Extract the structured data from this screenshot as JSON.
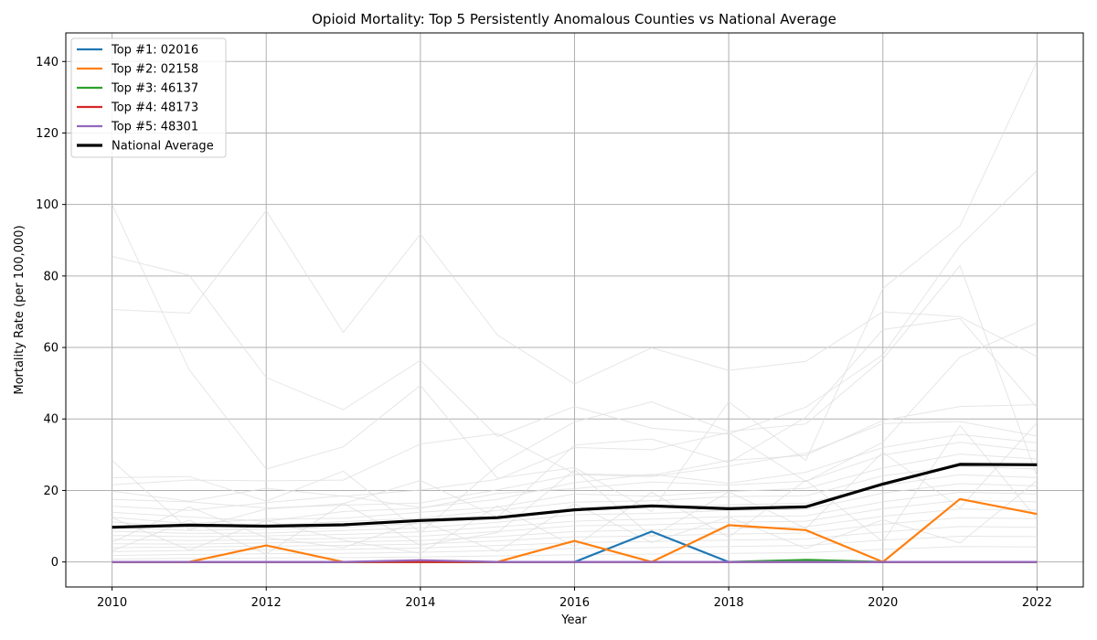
{
  "chart_data": {
    "type": "line",
    "title": "Opioid Mortality: Top 5 Persistently Anomalous Counties vs National Average",
    "xlabel": "Year",
    "ylabel": "Mortality Rate (per 100,000)",
    "xlim": [
      2009.4,
      2022.6
    ],
    "ylim": [
      -7,
      148
    ],
    "x_ticks": [
      2010,
      2012,
      2014,
      2016,
      2018,
      2020,
      2022
    ],
    "y_ticks": [
      0,
      20,
      40,
      60,
      80,
      100,
      120,
      140
    ],
    "grid": true,
    "legend_position": "upper-left",
    "x": [
      2010,
      2011,
      2012,
      2013,
      2014,
      2015,
      2016,
      2017,
      2018,
      2019,
      2020,
      2021,
      2022
    ],
    "series": [
      {
        "name": "Top #1: 02016",
        "color": "#1f77b4",
        "values": [
          0,
          0,
          0,
          0,
          0,
          0,
          0,
          8.5,
          0,
          0,
          0,
          0,
          0
        ]
      },
      {
        "name": "Top #2: 02158",
        "color": "#ff7f0e",
        "values": [
          0,
          0,
          4.6,
          0,
          0,
          0,
          5.9,
          0,
          10.3,
          8.9,
          0,
          17.6,
          13.4
        ]
      },
      {
        "name": "Top #3: 46137",
        "color": "#2ca02c",
        "values": [
          0,
          0,
          0,
          0,
          0,
          0,
          0,
          0,
          0,
          0.6,
          0,
          0,
          0
        ]
      },
      {
        "name": "Top #4: 48173",
        "color": "#d62728",
        "values": [
          0,
          0,
          0,
          0,
          0,
          0,
          0,
          0,
          0,
          0,
          0,
          0,
          0
        ]
      },
      {
        "name": "Top #5: 48301",
        "color": "#9467bd",
        "values": [
          0,
          0,
          0,
          0,
          0.5,
          0,
          0,
          0,
          0,
          0,
          0,
          0,
          0
        ]
      },
      {
        "name": "National Average",
        "color": "#000000",
        "values": [
          9.7,
          10.3,
          10.0,
          10.4,
          11.6,
          12.4,
          14.6,
          15.7,
          14.9,
          15.4,
          21.8,
          27.3,
          27.2
        ]
      }
    ],
    "background_series_color": "#dddddd",
    "background_series": [
      [
        100.0,
        53.8,
        26.0,
        32.2,
        49.4,
        23.4,
        26.4,
        14.1,
        44.8,
        28.4,
        76.5,
        94.0,
        140.0
      ],
      [
        85.5,
        80.2,
        51.6,
        42.6,
        56.4,
        35.1,
        43.5,
        37.4,
        35.8,
        43.3,
        58.0,
        88.4,
        109.5
      ],
      [
        70.6,
        69.6,
        98.3,
        64.2,
        91.7,
        63.5,
        49.8,
        59.9,
        53.6,
        56.1,
        70.0,
        68.6,
        57.4
      ],
      [
        28.4,
        9.0,
        14.8,
        16.3,
        22.8,
        12.5,
        32.7,
        34.4,
        27.8,
        40.5,
        65.0,
        68.1,
        43.2
      ],
      [
        23.6,
        23.9,
        17.0,
        25.4,
        8.2,
        27.0,
        39.2,
        44.8,
        36.5,
        38.6,
        56.8,
        82.9,
        24.1
      ],
      [
        21.6,
        22.9,
        22.7,
        22.9,
        33.0,
        35.9,
        24.7,
        24.2,
        28.4,
        29.8,
        39.6,
        43.5,
        44.0
      ],
      [
        19.8,
        17.0,
        20.6,
        18.4,
        20.1,
        23.1,
        32.0,
        31.4,
        36.2,
        22.5,
        33.5,
        57.3,
        66.9
      ],
      [
        17.5,
        16.8,
        15.1,
        15.9,
        16.5,
        20.2,
        24.4,
        23.9,
        26.8,
        30.4,
        38.7,
        39.3,
        35.2
      ],
      [
        15.6,
        14.4,
        16.6,
        18.5,
        15.2,
        17.5,
        22.2,
        24.5,
        22.0,
        25.1,
        32.0,
        35.7,
        33.3
      ],
      [
        13.9,
        12.6,
        11.4,
        14.1,
        15.0,
        19.2,
        20.5,
        22.4,
        21.5,
        22.6,
        29.9,
        33.5,
        31.0
      ],
      [
        12.5,
        10.7,
        12.0,
        12.2,
        13.9,
        15.3,
        19.0,
        18.4,
        19.7,
        20.6,
        26.3,
        30.2,
        28.8
      ],
      [
        11.2,
        9.6,
        10.3,
        11.3,
        12.2,
        14.4,
        16.7,
        17.1,
        18.3,
        18.5,
        24.1,
        26.8,
        26.0
      ],
      [
        9.8,
        8.8,
        9.2,
        9.7,
        10.8,
        12.6,
        14.7,
        15.2,
        16.0,
        16.4,
        21.4,
        24.4,
        23.6
      ],
      [
        8.6,
        8.0,
        8.1,
        8.8,
        9.5,
        11.1,
        13.2,
        13.6,
        14.4,
        14.7,
        19.3,
        21.9,
        21.3
      ],
      [
        7.4,
        7.1,
        7.3,
        7.7,
        8.4,
        9.8,
        11.4,
        12.0,
        12.7,
        12.9,
        16.8,
        19.5,
        19.0
      ],
      [
        6.3,
        6.0,
        6.2,
        6.6,
        7.2,
        8.5,
        10.1,
        10.4,
        11.1,
        11.4,
        14.9,
        17.2,
        16.8
      ],
      [
        5.1,
        5.0,
        5.3,
        5.6,
        6.0,
        7.1,
        8.5,
        8.9,
        9.4,
        9.8,
        12.8,
        14.8,
        14.5
      ],
      [
        4.0,
        4.2,
        4.4,
        4.6,
        5.0,
        5.9,
        7.0,
        7.3,
        7.8,
        8.1,
        10.6,
        12.4,
        12.1
      ],
      [
        2.9,
        3.2,
        3.4,
        3.5,
        3.9,
        4.6,
        5.4,
        5.7,
        6.1,
        6.4,
        8.4,
        9.9,
        9.7
      ],
      [
        1.8,
        2.1,
        2.3,
        2.4,
        2.7,
        3.2,
        3.8,
        4.0,
        4.3,
        4.6,
        6.1,
        7.2,
        7.1
      ],
      [
        0.8,
        1.0,
        1.1,
        1.2,
        1.4,
        1.7,
        2.0,
        2.2,
        2.4,
        2.6,
        3.5,
        4.3,
        4.2
      ],
      [
        5.5,
        15.4,
        6.8,
        4.0,
        11.5,
        2.9,
        16.3,
        5.4,
        12.6,
        3.8,
        11.8,
        5.3,
        22.8
      ],
      [
        12.4,
        3.3,
        11.6,
        6.1,
        2.4,
        15.7,
        4.3,
        19.5,
        6.9,
        22.9,
        5.6,
        38.2,
        12.0
      ],
      [
        3.1,
        11.7,
        2.2,
        16.4,
        4.6,
        8.2,
        25.8,
        7.1,
        19.6,
        9.4,
        30.7,
        15.1,
        39.0
      ]
    ]
  }
}
